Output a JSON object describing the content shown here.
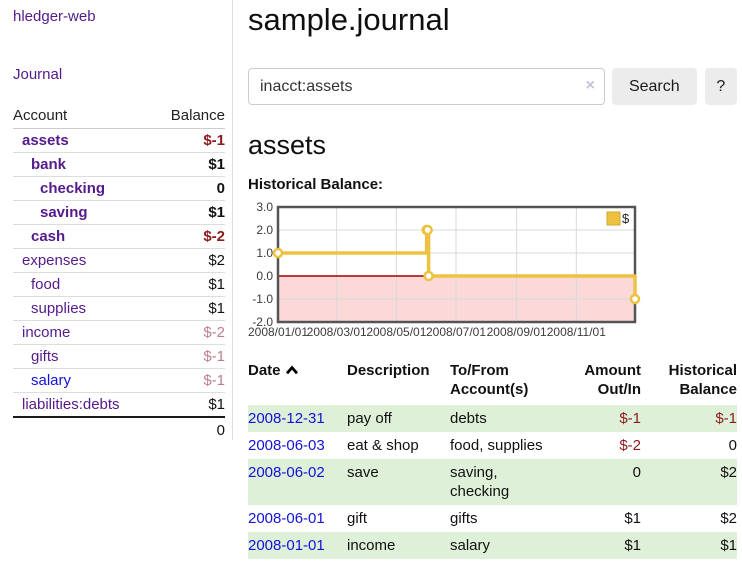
{
  "app": {
    "title": "hledger-web"
  },
  "sidebar": {
    "journal_label": "Journal",
    "accounts_table": {
      "headers": [
        "Account",
        "Balance"
      ],
      "rows": [
        {
          "name": "assets",
          "indent": 1,
          "bold": true,
          "blue": false,
          "balance": "$-1",
          "balance_class": "neg-strong"
        },
        {
          "name": "bank",
          "indent": 2,
          "bold": true,
          "blue": false,
          "balance": "$1",
          "balance_class": ""
        },
        {
          "name": "checking",
          "indent": 3,
          "bold": true,
          "blue": false,
          "balance": "0",
          "balance_class": ""
        },
        {
          "name": "saving",
          "indent": 3,
          "bold": true,
          "blue": false,
          "balance": "$1",
          "balance_class": ""
        },
        {
          "name": "cash",
          "indent": 2,
          "bold": true,
          "blue": false,
          "balance": "$-2",
          "balance_class": "neg-strong"
        },
        {
          "name": "expenses",
          "indent": 1,
          "bold": false,
          "blue": false,
          "balance": "$2",
          "balance_class": ""
        },
        {
          "name": "food",
          "indent": 2,
          "bold": false,
          "blue": false,
          "balance": "$1",
          "balance_class": ""
        },
        {
          "name": "supplies",
          "indent": 2,
          "bold": false,
          "blue": false,
          "balance": "$1",
          "balance_class": ""
        },
        {
          "name": "income",
          "indent": 1,
          "bold": false,
          "blue": false,
          "balance": "$-2",
          "balance_class": "neg-muted"
        },
        {
          "name": "gifts",
          "indent": 2,
          "bold": false,
          "blue": false,
          "balance": "$-1",
          "balance_class": "neg-muted"
        },
        {
          "name": "salary",
          "indent": 2,
          "bold": false,
          "blue": true,
          "balance": "$-1",
          "balance_class": "neg-muted"
        },
        {
          "name": "liabilities:debts",
          "indent": 1,
          "bold": false,
          "blue": false,
          "balance": "$1",
          "balance_class": ""
        }
      ],
      "total": "0"
    }
  },
  "header": {
    "title": "sample.journal"
  },
  "search": {
    "value": "inacct:assets",
    "clear_icon": "×",
    "button_label": "Search",
    "help_label": "?"
  },
  "account_page": {
    "heading": "assets",
    "chart_label": "Historical Balance:"
  },
  "chart_data": {
    "type": "line",
    "step": true,
    "title": "Historical Balance:",
    "legend_position": "top-right",
    "series": [
      {
        "name": "$",
        "color": "#edc240",
        "points": [
          [
            "2008-01-01",
            1
          ],
          [
            "2008-06-01",
            2
          ],
          [
            "2008-06-02",
            2
          ],
          [
            "2008-06-03",
            0
          ],
          [
            "2008-12-31",
            -1
          ]
        ]
      }
    ],
    "xrange": [
      "2008-01-01",
      "2008-12-31"
    ],
    "ylim": [
      -2,
      3
    ],
    "yticks": [
      {
        "label": "3.0",
        "value": 3
      },
      {
        "label": "2.0",
        "value": 2
      },
      {
        "label": "1.0",
        "value": 1
      },
      {
        "label": "0.0",
        "value": 0
      },
      {
        "label": "-1.0",
        "value": -1
      },
      {
        "label": "-2.0",
        "value": -2
      }
    ],
    "xticks": [
      {
        "label": "2008/01/01",
        "date": "2008-01-01"
      },
      {
        "label": "2008/03/01",
        "date": "2008-03-01"
      },
      {
        "label": "2008/05/01",
        "date": "2008-05-01"
      },
      {
        "label": "2008/07/01",
        "date": "2008-07-01"
      },
      {
        "label": "2008/09/01",
        "date": "2008-09-01"
      },
      {
        "label": "2008/11/01",
        "date": "2008-11-01"
      }
    ],
    "grid": true,
    "colors": {
      "line": "#edc240",
      "legend_box_border": "#cfa82e",
      "grid_line": "#d9d9d9",
      "plot_border": "#545454",
      "negative_fill": "#fbd9d9",
      "zero_line": "#a00000",
      "tick_text": "#3c3c3c"
    }
  },
  "register_table": {
    "sort_column": "date",
    "sort_direction": "ascending",
    "headers": {
      "date": "Date",
      "description": "Description",
      "tofrom": "To/From Account(s)",
      "amount": "Amount Out/In",
      "historical": "Historical Balance"
    },
    "rows": [
      {
        "date": "2008-12-31",
        "description": "pay off",
        "accounts": "debts",
        "amount": "$-1",
        "amount_neg": true,
        "historical": "$-1",
        "historical_neg": true
      },
      {
        "date": "2008-06-03",
        "description": "eat & shop",
        "accounts": "food, supplies",
        "amount": "$-2",
        "amount_neg": true,
        "historical": "0",
        "historical_neg": false
      },
      {
        "date": "2008-06-02",
        "description": "save",
        "accounts": "saving, checking",
        "amount": "0",
        "amount_neg": false,
        "historical": "$2",
        "historical_neg": false
      },
      {
        "date": "2008-06-01",
        "description": "gift",
        "accounts": "gifts",
        "amount": "$1",
        "amount_neg": false,
        "historical": "$2",
        "historical_neg": false
      },
      {
        "date": "2008-01-01",
        "description": "income",
        "accounts": "salary",
        "amount": "$1",
        "amount_neg": false,
        "historical": "$1",
        "historical_neg": false
      }
    ]
  }
}
